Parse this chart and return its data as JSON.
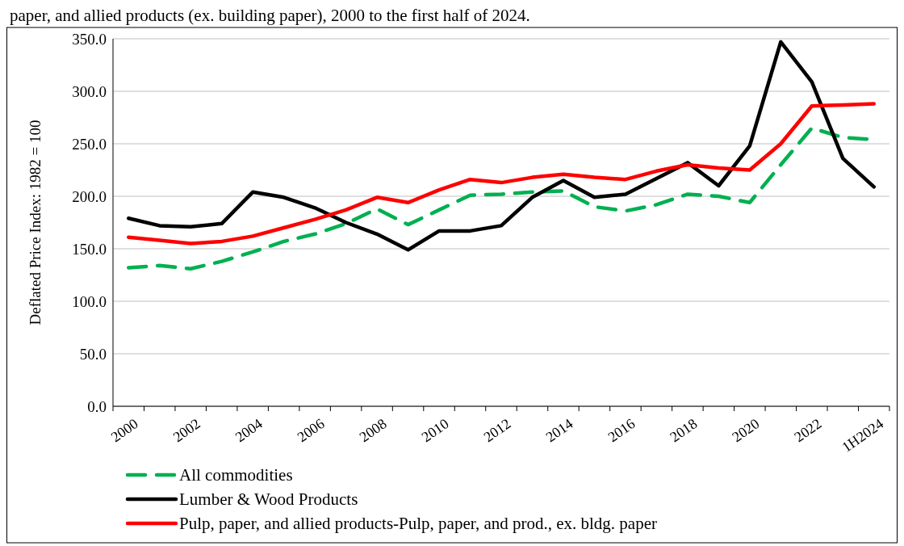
{
  "chart_data": {
    "type": "line",
    "title": "paper, and allied products (ex. building paper), 2000 to the first half of 2024.",
    "ylabel": "Deflated Price Index: 1982 = 100",
    "categories": [
      "2000",
      null,
      "2002",
      null,
      "2004",
      null,
      "2006",
      null,
      "2008",
      null,
      "2010",
      null,
      "2012",
      null,
      "2014",
      null,
      "2016",
      null,
      "2018",
      null,
      "2020",
      null,
      "2022",
      null,
      "1H2024"
    ],
    "series": [
      {
        "name": "All commodities",
        "color": "#00b050",
        "line_style": "dashed",
        "values": [
          132,
          134,
          131,
          138,
          147,
          157,
          164,
          174,
          188,
          173,
          187,
          201,
          202,
          204,
          205,
          190,
          186,
          192,
          202,
          200,
          194,
          230,
          265,
          256,
          254
        ]
      },
      {
        "name": "Lumber & Wood Products",
        "color": "#000000",
        "line_style": "solid",
        "values": [
          179,
          172,
          171,
          174,
          204,
          199,
          189,
          175,
          164,
          149,
          167,
          167,
          172,
          199,
          215,
          199,
          202,
          217,
          232,
          210,
          248,
          347,
          309,
          236,
          209
        ]
      },
      {
        "name": "Pulp, paper, and allied products-Pulp, paper, and prod., ex. bldg. paper",
        "color": "#ff0000",
        "line_style": "solid",
        "values": [
          161,
          158,
          155,
          157,
          162,
          170,
          178,
          187,
          199,
          194,
          206,
          216,
          213,
          218,
          221,
          218,
          216,
          224,
          230,
          227,
          225,
          250,
          286,
          287,
          288
        ]
      }
    ],
    "ylim": [
      0,
      350
    ],
    "yticks": [
      {
        "value": 0,
        "label": "0.0"
      },
      {
        "value": 50,
        "label": "50.0"
      },
      {
        "value": 100,
        "label": "100.0"
      },
      {
        "value": 150,
        "label": "150.0"
      },
      {
        "value": 200,
        "label": "200.0"
      },
      {
        "value": 250,
        "label": "250.0"
      },
      {
        "value": 300,
        "label": "300.0"
      },
      {
        "value": 350,
        "label": "350.0"
      }
    ],
    "grid": "y",
    "legend": "bottom",
    "marker": "none"
  }
}
